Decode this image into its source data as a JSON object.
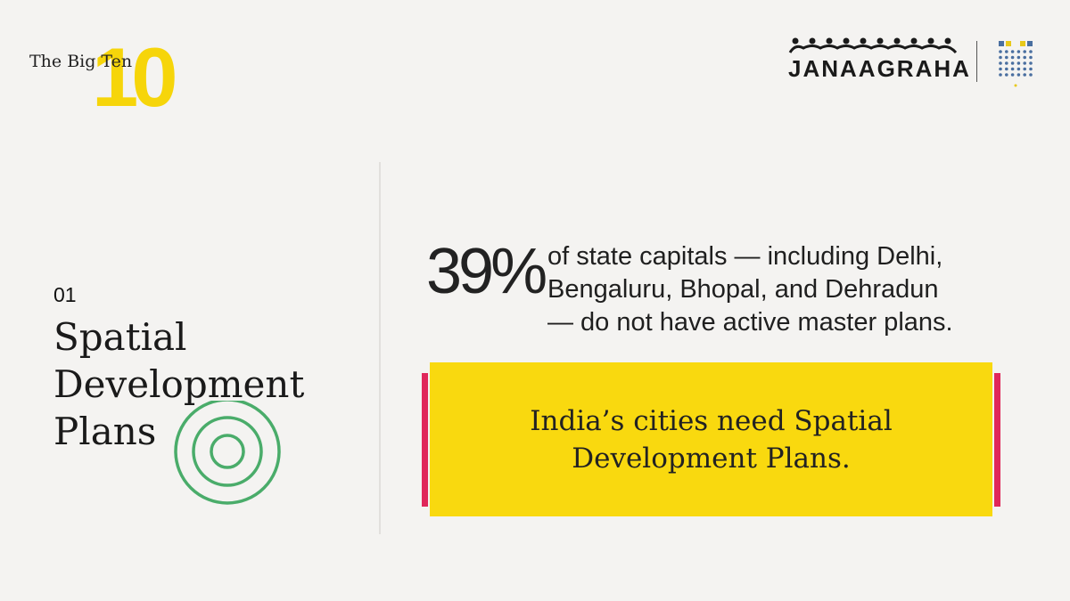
{
  "badge": {
    "label": "The Big Ten",
    "number": "10"
  },
  "logos": {
    "janaagraha": "JANAAGRAHA",
    "aiics_alt": "AIICS"
  },
  "section": {
    "number": "01",
    "title_lines": [
      "Spatial",
      "Development",
      "Plans"
    ],
    "icon": "concentric-rings-icon"
  },
  "stat": {
    "value": "39%",
    "text_lines": [
      "of state capitals — including Delhi,",
      "Bengaluru, Bhopal, and Dehradun",
      "— do not have active master plans."
    ]
  },
  "callout": {
    "lines": [
      "India’s cities need Spatial",
      "Development Plans."
    ]
  },
  "colors": {
    "background": "#f4f3f1",
    "accent_yellow": "#f9d90f",
    "accent_pink": "#e0275a",
    "ring_green": "#4aac6a"
  }
}
